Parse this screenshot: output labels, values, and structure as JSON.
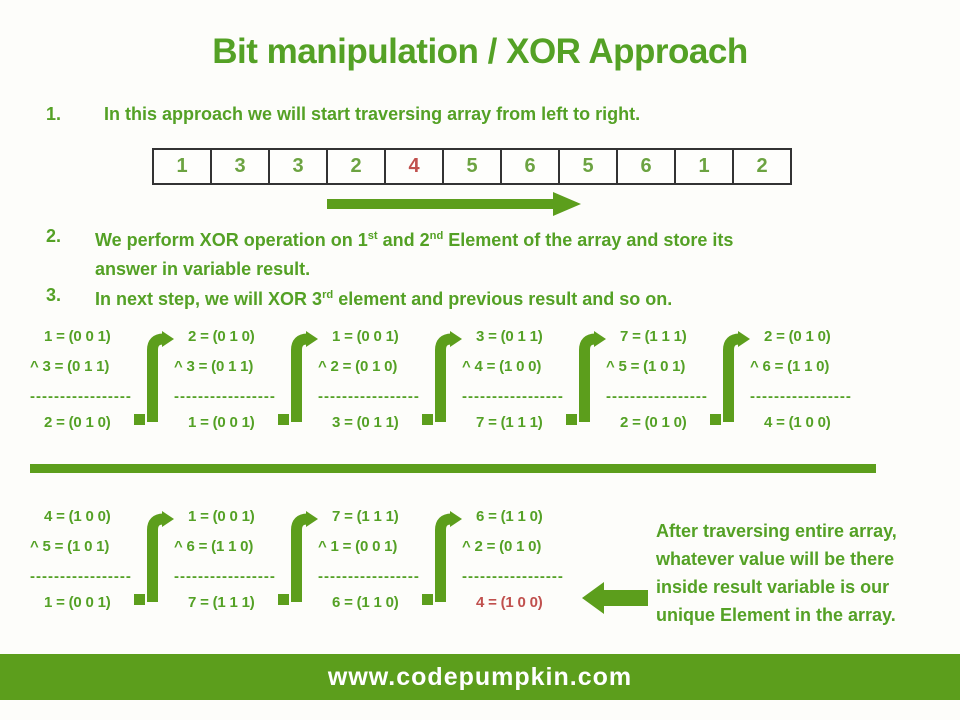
{
  "title": "Bit manipulation / XOR Approach",
  "steps": [
    {
      "num": "1.",
      "segments": [
        {
          "text": "In this approach we will start traversing array from left to right."
        }
      ]
    },
    {
      "num": "2.",
      "segments": [
        {
          "text": "We perform XOR  operation on 1"
        },
        {
          "sup": "st"
        },
        {
          "text": " and 2"
        },
        {
          "sup": "nd"
        },
        {
          "text": " Element of the array and store its"
        },
        {
          "br": true
        },
        {
          "text": "answer in variable result."
        }
      ]
    },
    {
      "num": "3.",
      "segments": [
        {
          "text": "In next step, we will XOR 3"
        },
        {
          "sup": "rd"
        },
        {
          "text": " element and previous result and so on."
        }
      ]
    }
  ],
  "array": {
    "values": [
      "1",
      "3",
      "3",
      "2",
      "4",
      "5",
      "6",
      "5",
      "6",
      "1",
      "2"
    ],
    "highlight_index": 4
  },
  "dashes": "-----------------",
  "xor_rows": [
    {
      "blocks": [
        {
          "a": "1 = (0 0 1)",
          "b": "^ 3 = (0 1 1)",
          "result": "2 = (0 1 0)",
          "result_red": false
        },
        {
          "a": "2 = (0 1 0)",
          "b": "^ 3 = (0 1 1)",
          "result": "1 = (0 0 1)",
          "result_red": false
        },
        {
          "a": "1 = (0 0 1)",
          "b": "^ 2 = (0 1 0)",
          "result": "3 = (0 1 1)",
          "result_red": false
        },
        {
          "a": "3 = (0 1 1)",
          "b": "^ 4 = (1 0 0)",
          "result": "7 = (1 1 1)",
          "result_red": false
        },
        {
          "a": "7 = (1 1 1)",
          "b": "^ 5 = (1 0 1)",
          "result": "2 = (0 1 0)",
          "result_red": false
        },
        {
          "a": "2 = (0 1 0)",
          "b": "^ 6 = (1 1 0)",
          "result": "4 = (1 0 0)",
          "result_red": false
        }
      ]
    },
    {
      "blocks": [
        {
          "a": "4 = (1 0 0)",
          "b": "^ 5 = (1 0 1)",
          "result": "1 = (0 0 1)",
          "result_red": false
        },
        {
          "a": "1 = (0 0 1)",
          "b": "^ 6 = (1 1 0)",
          "result": "7 = (1 1 1)",
          "result_red": false
        },
        {
          "a": "7 = (1 1 1)",
          "b": "^ 1 = (0 0 1)",
          "result": "6 = (1 1 0)",
          "result_red": false
        },
        {
          "a": "6 = (1 1 0)",
          "b": "^ 2 = (0 1 0)",
          "result": "4 = (1 0 0)",
          "result_red": true
        }
      ]
    }
  ],
  "note_lines": [
    "After traversing entire array,",
    "whatever value will be there",
    "inside result variable is our",
    "unique Element in the array."
  ],
  "footer_url": "www.codepumpkin.com",
  "colors": {
    "text_green": "#54a125",
    "light_green": "#6ca341",
    "shape_green": "#5c9e1c",
    "highlight_red": "#c0504d",
    "table_border": "#333333",
    "footer_text": "#ffffff"
  }
}
